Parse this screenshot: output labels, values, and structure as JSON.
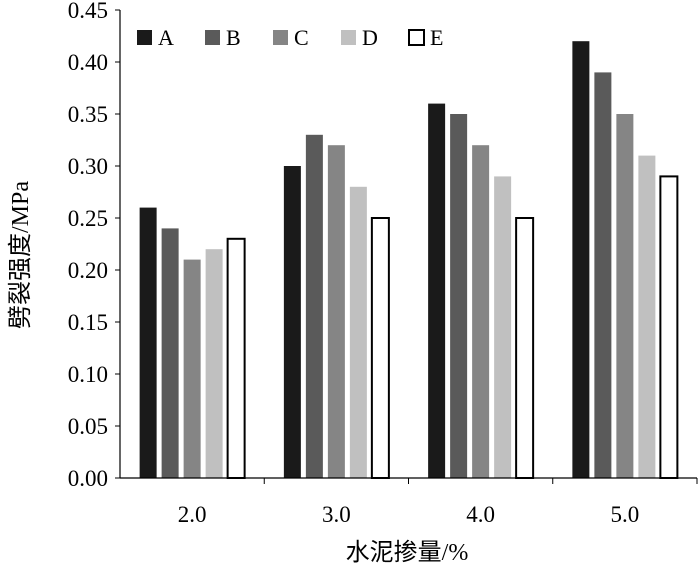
{
  "chart_data": {
    "type": "bar",
    "title": "",
    "xlabel": "水泥掺量/%",
    "ylabel": "劈裂强度/MPa",
    "categories": [
      "2.0",
      "3.0",
      "4.0",
      "5.0"
    ],
    "ylim": [
      0,
      0.45
    ],
    "yticks": [
      "0.00",
      "0.05",
      "0.10",
      "0.15",
      "0.20",
      "0.25",
      "0.30",
      "0.35",
      "0.40",
      "0.45"
    ],
    "grid": false,
    "legend_position": "top-left",
    "series": [
      {
        "name": "A",
        "color": "#1a1a1a",
        "values": [
          0.26,
          0.3,
          0.36,
          0.42
        ]
      },
      {
        "name": "B",
        "color": "#5a5a5a",
        "values": [
          0.24,
          0.33,
          0.35,
          0.39
        ]
      },
      {
        "name": "C",
        "color": "#858585",
        "values": [
          0.21,
          0.32,
          0.32,
          0.35
        ]
      },
      {
        "name": "D",
        "color": "#c0c0c0",
        "values": [
          0.22,
          0.28,
          0.29,
          0.31
        ]
      },
      {
        "name": "E",
        "color": "#ffffff",
        "values": [
          0.23,
          0.25,
          0.25,
          0.29
        ]
      }
    ]
  }
}
